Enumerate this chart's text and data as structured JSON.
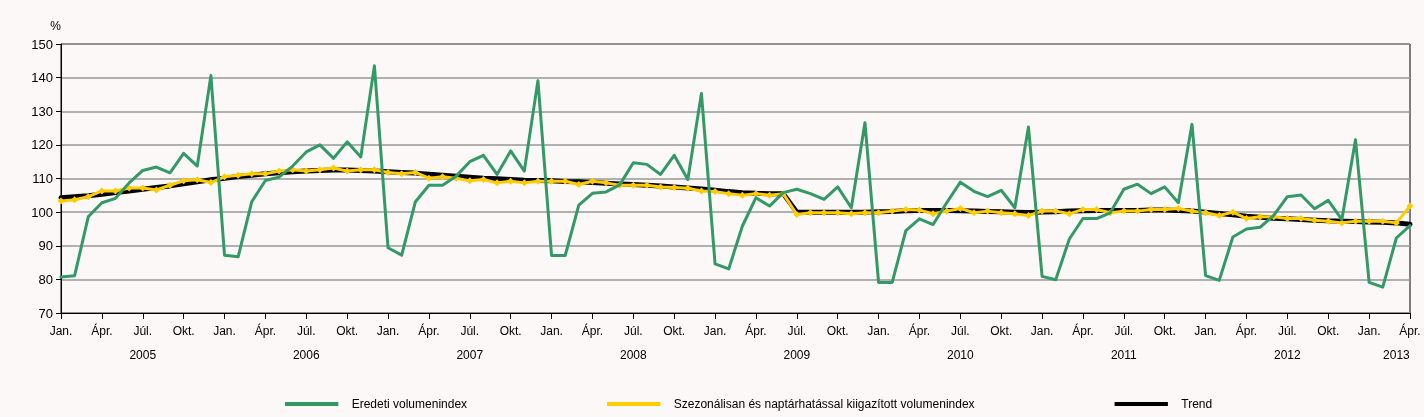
{
  "chart_data": {
    "type": "line",
    "ylabel": "%",
    "categories": [
      "Jan.",
      null,
      null,
      "Ápr.",
      null,
      null,
      "Júl.",
      null,
      null,
      "Okt.",
      null,
      null,
      "Jan.",
      null,
      null,
      "Ápr.",
      null,
      null,
      "Júl.",
      null,
      null,
      "Okt.",
      null,
      null,
      "Jan.",
      null,
      null,
      "Ápr.",
      null,
      null,
      "Júl.",
      null,
      null,
      "Okt.",
      null,
      null,
      "Jan.",
      null,
      null,
      "Ápr.",
      null,
      null,
      "Júl.",
      null,
      null,
      "Okt.",
      null,
      null,
      "Jan.",
      null,
      null,
      "Ápr.",
      null,
      null,
      "Júl.",
      null,
      null,
      "Okt.",
      null,
      null,
      "Jan.",
      null,
      null,
      "Ápr.",
      null,
      null,
      "Júl.",
      null,
      null,
      "Okt.",
      null,
      null,
      "Jan.",
      null,
      null,
      "Ápr.",
      null,
      null,
      "Júl.",
      null,
      null,
      "Okt.",
      null,
      null,
      "Jan.",
      null,
      null,
      "Ápr.",
      null,
      null,
      "Júl.",
      null,
      null,
      "Okt.",
      null,
      null,
      "Jan.",
      null,
      null,
      "Ápr."
    ],
    "series": [
      {
        "name": "Eredeti volumenindex",
        "color": "#339966",
        "marker": "none",
        "values": [
          80.7,
          81.1,
          98.6,
          102.8,
          104.1,
          108.7,
          112.4,
          113.4,
          111.7,
          117.5,
          113.7,
          140.6,
          87.2,
          86.7,
          103.1,
          109.4,
          110.4,
          113.7,
          117.9,
          120.0,
          116.0,
          120.9,
          116.4,
          143.5,
          89.4,
          87.2,
          103.0,
          108.0,
          108.0,
          110.7,
          115.0,
          116.9,
          111.2,
          118.2,
          112.2,
          139.1,
          87.1,
          87.1,
          102.1,
          105.6,
          106.0,
          108.1,
          114.7,
          114.2,
          111.2,
          116.9,
          109.7,
          135.3,
          84.6,
          83.1,
          95.8,
          104.3,
          101.8,
          105.8,
          106.8,
          105.5,
          103.8,
          107.5,
          101.3,
          126.6,
          79.1,
          79.1,
          94.5,
          98.0,
          96.3,
          102.8,
          108.9,
          106.2,
          104.6,
          106.5,
          101.3,
          125.3,
          80.9,
          79.9,
          92.0,
          98.1,
          98.1,
          99.8,
          106.8,
          108.3,
          105.5,
          107.5,
          102.8,
          126.1,
          81.1,
          79.7,
          92.6,
          95.0,
          95.5,
          99.0,
          104.6,
          105.1,
          101.0,
          103.5,
          97.8,
          121.5,
          79.1,
          77.7,
          92.3,
          96.0
        ]
      },
      {
        "name": "Szezonálisan és naptárhatással kiigazított volumenindex",
        "color": "#ffcc00",
        "marker": "diamond",
        "values": [
          103.3,
          103.7,
          104.6,
          106.3,
          106.3,
          107.2,
          107.2,
          106.6,
          108.0,
          109.3,
          109.6,
          108.8,
          110.5,
          111.0,
          111.4,
          111.4,
          112.2,
          112.6,
          112.2,
          112.6,
          113.1,
          112.2,
          112.6,
          112.6,
          111.8,
          111.4,
          111.8,
          110.1,
          110.5,
          110.1,
          109.3,
          109.7,
          108.7,
          109.2,
          108.7,
          109.2,
          109.2,
          109.2,
          108.2,
          109.2,
          108.7,
          108.0,
          108.0,
          108.0,
          107.5,
          107.3,
          107.1,
          106.3,
          106.1,
          105.5,
          105.0,
          105.5,
          105.0,
          105.5,
          99.3,
          99.8,
          99.8,
          99.8,
          99.5,
          99.8,
          99.8,
          100.3,
          100.8,
          100.6,
          99.5,
          100.3,
          101.1,
          99.8,
          100.3,
          99.8,
          99.5,
          99.0,
          100.3,
          100.3,
          99.5,
          100.8,
          100.8,
          99.8,
          100.3,
          100.3,
          100.8,
          100.8,
          101.1,
          100.3,
          99.8,
          99.0,
          100.0,
          98.1,
          98.6,
          98.6,
          98.1,
          98.1,
          97.6,
          97.3,
          96.8,
          97.3,
          97.3,
          97.3,
          96.8,
          101.8
        ]
      },
      {
        "name": "Trend",
        "color": "#000000",
        "marker": "none",
        "values": [
          104.3,
          104.6,
          104.9,
          105.3,
          105.8,
          106.3,
          106.8,
          107.3,
          107.8,
          108.4,
          109.0,
          109.6,
          110.1,
          110.6,
          111.0,
          111.4,
          111.7,
          112.0,
          112.2,
          112.4,
          112.5,
          112.5,
          112.4,
          112.2,
          112.0,
          111.8,
          111.6,
          111.3,
          111.0,
          110.7,
          110.4,
          110.1,
          109.9,
          109.7,
          109.5,
          109.4,
          109.3,
          109.1,
          109.0,
          108.8,
          108.6,
          108.4,
          108.2,
          108.0,
          107.8,
          107.5,
          107.2,
          106.9,
          106.5,
          106.1,
          105.8,
          105.6,
          105.5,
          105.5,
          100.0,
          100.0,
          100.0,
          100.0,
          100.0,
          100.0,
          100.1,
          100.2,
          100.4,
          100.5,
          100.5,
          100.5,
          100.4,
          100.3,
          100.2,
          100.1,
          100.0,
          99.9,
          100.0,
          100.1,
          100.3,
          100.4,
          100.5,
          100.5,
          100.5,
          100.5,
          100.6,
          100.6,
          100.5,
          100.3,
          100.0,
          99.6,
          99.2,
          98.8,
          98.5,
          98.2,
          98.0,
          97.8,
          97.6,
          97.4,
          97.3,
          97.2,
          97.1,
          97.0,
          96.8,
          96.4
        ]
      }
    ],
    "ylim": [
      70,
      150
    ],
    "yticks": [
      70,
      80,
      90,
      100,
      110,
      120,
      130,
      140,
      150
    ],
    "grid": "y",
    "legend": "bottom",
    "annotations": [
      "2005",
      "2006",
      "2007",
      "2008",
      "2009",
      "2010",
      "2011",
      "2012",
      "2013"
    ]
  }
}
